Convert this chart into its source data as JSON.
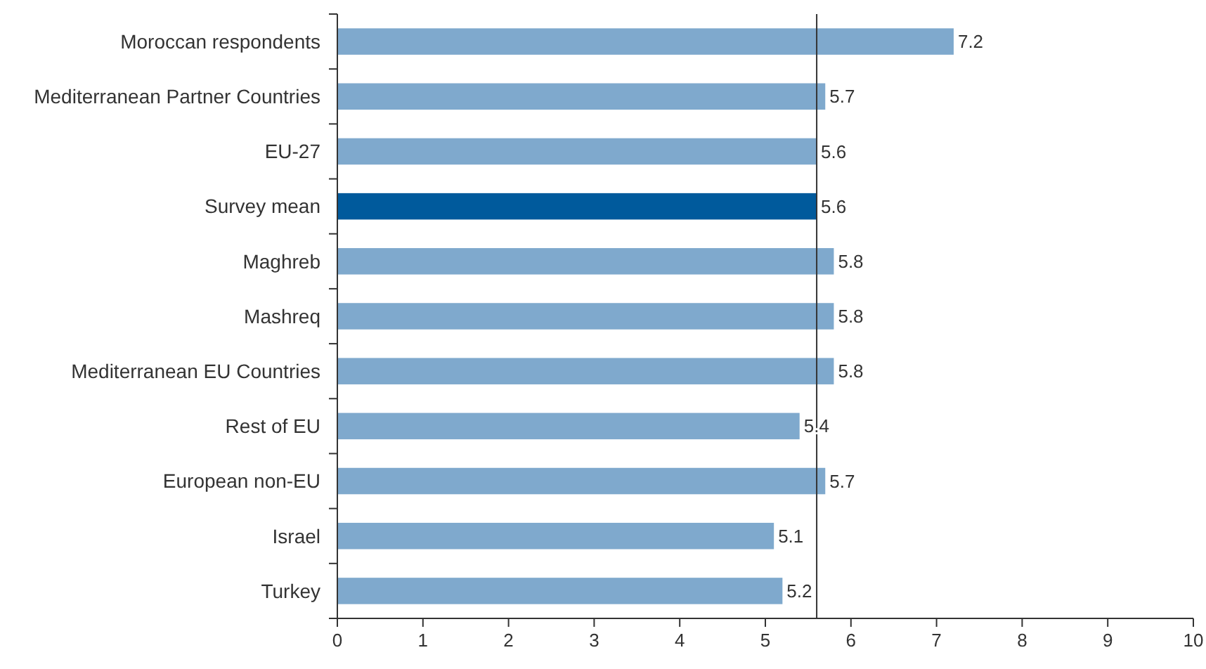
{
  "chart_data": {
    "type": "bar",
    "orientation": "horizontal",
    "categories": [
      "Moroccan respondents",
      "Mediterranean Partner Countries",
      "EU-27",
      "Survey mean",
      "Maghreb",
      "Mashreq",
      "Mediterranean EU Countries",
      "Rest of EU",
      "European non-EU",
      "Israel",
      "Turkey"
    ],
    "values": [
      7.2,
      5.7,
      5.6,
      5.6,
      5.8,
      5.8,
      5.8,
      5.4,
      5.7,
      5.1,
      5.2
    ],
    "colors": [
      "#7fa9cd",
      "#7fa9cd",
      "#7fa9cd",
      "#005a9c",
      "#7fa9cd",
      "#7fa9cd",
      "#7fa9cd",
      "#7fa9cd",
      "#7fa9cd",
      "#7fa9cd",
      "#7fa9cd"
    ],
    "xlim": [
      0,
      10
    ],
    "xticks": [
      0,
      1,
      2,
      3,
      4,
      5,
      6,
      7,
      8,
      9,
      10
    ],
    "data_labels": true,
    "ref_lines": [
      {
        "axis": "x",
        "value": 5.6,
        "color": "#333333"
      }
    ]
  }
}
